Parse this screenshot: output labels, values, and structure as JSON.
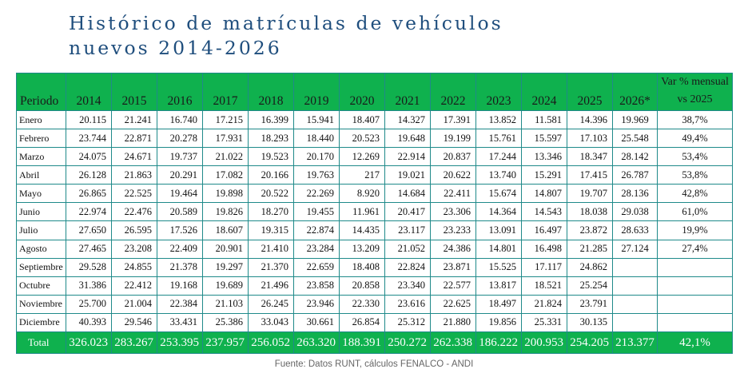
{
  "title_line1": "Histórico de matrículas de vehículos",
  "title_line2": "nuevos 2014-2026",
  "table": {
    "header_label": "Periodo",
    "years": [
      "2014",
      "2015",
      "2016",
      "2017",
      "2018",
      "2019",
      "2020",
      "2021",
      "2022",
      "2023",
      "2024",
      "2025"
    ],
    "col_2026": "2026*",
    "var_line1": "Var % mensual",
    "var_line2": "vs 2025",
    "rows": [
      {
        "month": "Enero",
        "values": [
          "20.115",
          "21.241",
          "16.740",
          "17.215",
          "16.399",
          "15.941",
          "18.407",
          "14.327",
          "17.391",
          "13.852",
          "11.581",
          "14.396"
        ],
        "y2026": "19.969",
        "var": "38,7%"
      },
      {
        "month": "Febrero",
        "values": [
          "23.744",
          "22.871",
          "20.278",
          "17.931",
          "18.293",
          "18.440",
          "20.523",
          "19.648",
          "19.199",
          "15.761",
          "15.597",
          "17.103"
        ],
        "y2026": "25.548",
        "var": "49,4%"
      },
      {
        "month": "Marzo",
        "values": [
          "24.075",
          "24.671",
          "19.737",
          "21.022",
          "19.523",
          "20.170",
          "12.269",
          "22.914",
          "20.837",
          "17.244",
          "13.346",
          "18.347"
        ],
        "y2026": "28.142",
        "var": "53,4%"
      },
      {
        "month": "Abril",
        "values": [
          "26.128",
          "21.863",
          "20.291",
          "17.082",
          "20.166",
          "19.763",
          "217",
          "19.021",
          "20.622",
          "13.740",
          "15.291",
          "17.415"
        ],
        "y2026": "26.787",
        "var": "53,8%"
      },
      {
        "month": "Mayo",
        "values": [
          "26.865",
          "22.525",
          "19.464",
          "19.898",
          "20.522",
          "22.269",
          "8.920",
          "14.684",
          "22.411",
          "15.674",
          "14.807",
          "19.707"
        ],
        "y2026": "28.136",
        "var": "42,8%"
      },
      {
        "month": "Junio",
        "values": [
          "22.974",
          "22.476",
          "20.589",
          "19.826",
          "18.270",
          "19.455",
          "11.961",
          "20.417",
          "23.306",
          "14.364",
          "14.543",
          "18.038"
        ],
        "y2026": "29.038",
        "var": "61,0%"
      },
      {
        "month": "Julio",
        "values": [
          "27.650",
          "26.595",
          "17.526",
          "18.607",
          "19.315",
          "22.874",
          "14.435",
          "23.117",
          "23.233",
          "13.091",
          "16.497",
          "23.872"
        ],
        "y2026": "28.633",
        "var": "19,9%"
      },
      {
        "month": "Agosto",
        "values": [
          "27.465",
          "23.208",
          "22.409",
          "20.901",
          "21.410",
          "23.284",
          "13.209",
          "21.052",
          "24.386",
          "14.801",
          "16.498",
          "21.285"
        ],
        "y2026": "27.124",
        "var": "27,4%"
      },
      {
        "month": "Septiembre",
        "values": [
          "29.528",
          "24.855",
          "21.378",
          "19.297",
          "21.370",
          "22.659",
          "18.408",
          "22.824",
          "23.871",
          "15.525",
          "17.117",
          "24.862"
        ],
        "y2026": "",
        "var": ""
      },
      {
        "month": "Octubre",
        "values": [
          "31.386",
          "22.412",
          "19.168",
          "19.689",
          "21.496",
          "23.858",
          "20.858",
          "23.340",
          "22.577",
          "13.817",
          "18.521",
          "25.254"
        ],
        "y2026": "",
        "var": ""
      },
      {
        "month": "Noviembre",
        "values": [
          "25.700",
          "21.004",
          "22.384",
          "21.103",
          "26.245",
          "23.946",
          "22.330",
          "23.616",
          "22.625",
          "18.497",
          "21.824",
          "23.791"
        ],
        "y2026": "",
        "var": ""
      },
      {
        "month": "Diciembre",
        "values": [
          "40.393",
          "29.546",
          "33.431",
          "25.386",
          "33.043",
          "30.661",
          "26.854",
          "25.312",
          "21.880",
          "19.856",
          "25.331",
          "30.135"
        ],
        "y2026": "",
        "var": ""
      }
    ],
    "total": {
      "label": "Total",
      "values": [
        "326.023",
        "283.267",
        "253.395",
        "237.957",
        "256.052",
        "263.320",
        "188.391",
        "250.272",
        "262.338",
        "186.222",
        "200.953",
        "254.205"
      ],
      "y2026": "213.377",
      "var": "42,1%"
    }
  },
  "source": "Fuente: Datos RUNT, cálculos FENALCO - ANDI",
  "colors": {
    "header_green": "#0fb14e",
    "title_blue": "#1f4e7d",
    "border": "#1f8a8a"
  }
}
